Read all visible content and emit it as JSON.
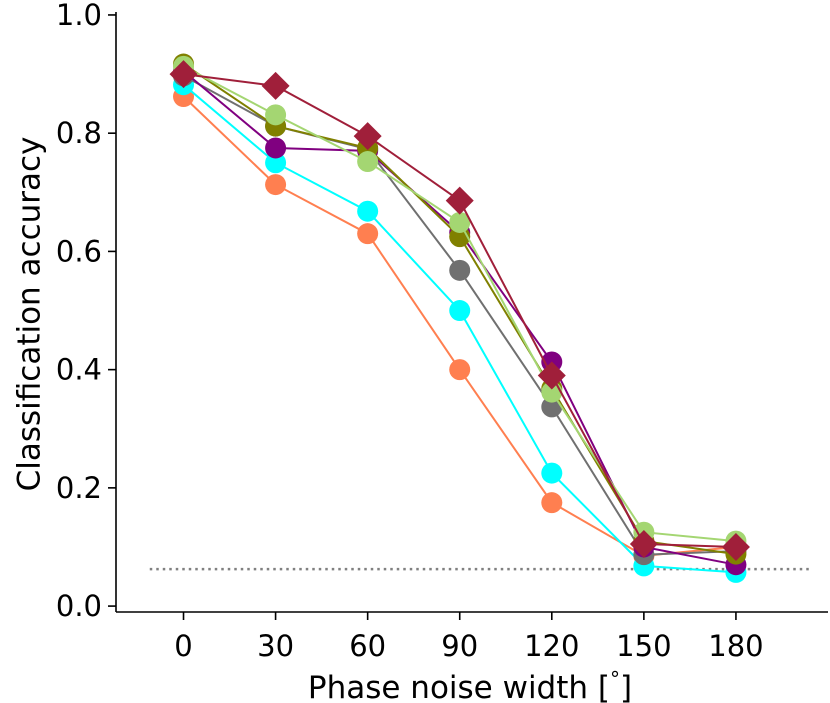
{
  "chart_data": {
    "type": "line",
    "title": "",
    "xlabel": "Phase noise width [$^\\circ$]",
    "xlabel_text": "Phase noise width [",
    "xlabel_unit": "°",
    "xlabel_end": "]",
    "ylabel": "Classification accuracy",
    "x": [
      0,
      30,
      60,
      90,
      120,
      150,
      180
    ],
    "xticks": [
      "0",
      "30",
      "60",
      "90",
      "120",
      "150",
      "180"
    ],
    "yticks": [
      "0.0",
      "0.2",
      "0.4",
      "0.6",
      "0.8",
      "1.0"
    ],
    "ytick_values": [
      0.0,
      0.2,
      0.4,
      0.6,
      0.8,
      1.0
    ],
    "xlim": [
      -22,
      210
    ],
    "ylim": [
      -0.01,
      1.005
    ],
    "chance_level": 0.0625,
    "chance_color": "#808080",
    "series": [
      {
        "name": "series-salmon",
        "color": "#ff7f50",
        "marker": "circle",
        "values": [
          0.862,
          0.713,
          0.63,
          0.4,
          0.175,
          0.085,
          0.1
        ]
      },
      {
        "name": "series-cyan",
        "color": "#00ffff",
        "marker": "circle",
        "values": [
          0.882,
          0.75,
          0.668,
          0.5,
          0.225,
          0.068,
          0.057
        ]
      },
      {
        "name": "series-gray",
        "color": "#707070",
        "marker": "circle",
        "values": [
          0.897,
          0.812,
          0.773,
          0.568,
          0.337,
          0.087,
          0.093
        ]
      },
      {
        "name": "series-purple",
        "color": "#800080",
        "marker": "circle",
        "values": [
          0.905,
          0.775,
          0.77,
          0.632,
          0.413,
          0.1,
          0.07
        ]
      },
      {
        "name": "series-olive",
        "color": "#808000",
        "marker": "circle",
        "values": [
          0.917,
          0.812,
          0.775,
          0.625,
          0.368,
          0.11,
          0.088
        ]
      },
      {
        "name": "series-lightgreen",
        "color": "#a4d672",
        "marker": "circle",
        "values": [
          0.913,
          0.831,
          0.752,
          0.649,
          0.362,
          0.125,
          0.11
        ]
      },
      {
        "name": "series-crimson",
        "color": "#a01f3a",
        "marker": "diamond",
        "values": [
          0.9,
          0.88,
          0.795,
          0.686,
          0.39,
          0.105,
          0.1
        ]
      }
    ]
  }
}
